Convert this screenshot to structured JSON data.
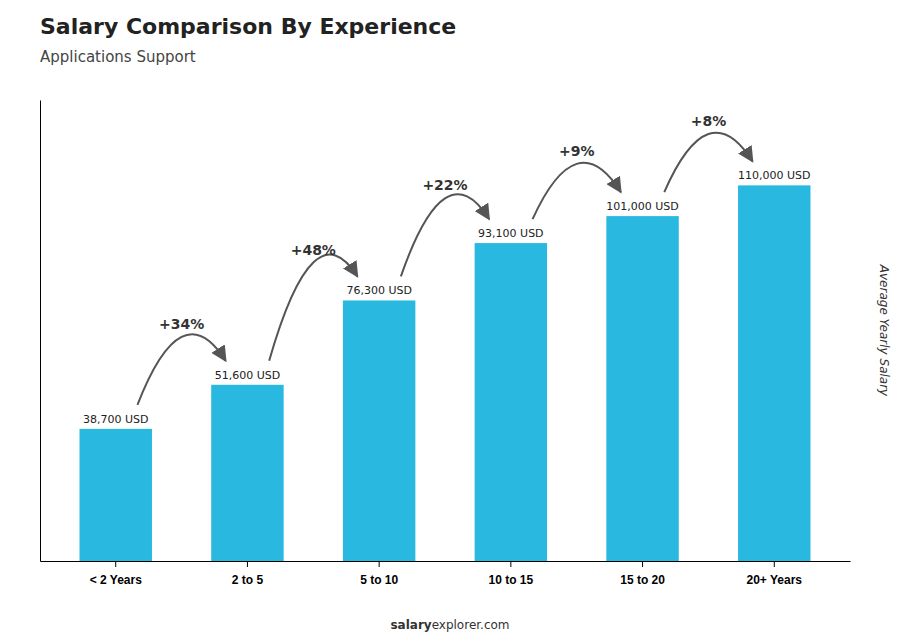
{
  "chart_data": {
    "type": "bar",
    "title": "Salary Comparison By Experience",
    "subtitle": "Applications Support",
    "ylabel": "Average Yearly Salary",
    "categories": [
      "< 2 Years",
      "2 to 5",
      "5 to 10",
      "10 to 15",
      "15 to 20",
      "20+ Years"
    ],
    "values": [
      38700,
      51600,
      76300,
      93100,
      101000,
      110000
    ],
    "value_labels": [
      "38,700 USD",
      "51,600 USD",
      "76,300 USD",
      "93,100 USD",
      "101,000 USD",
      "110,000 USD"
    ],
    "data_labels": true,
    "color": "#29b8e0",
    "ylim": [
      0,
      135000
    ],
    "tick_labels": "x",
    "grid": false,
    "annotations": [
      {
        "text": "+34%",
        "from": 0,
        "to": 1
      },
      {
        "text": "+48%",
        "from": 1,
        "to": 2
      },
      {
        "text": "+22%",
        "from": 2,
        "to": 3
      },
      {
        "text": "+9%",
        "from": 3,
        "to": 4
      },
      {
        "text": "+8%",
        "from": 4,
        "to": 5
      }
    ],
    "footer": [
      "salary",
      "explorer.com"
    ]
  }
}
